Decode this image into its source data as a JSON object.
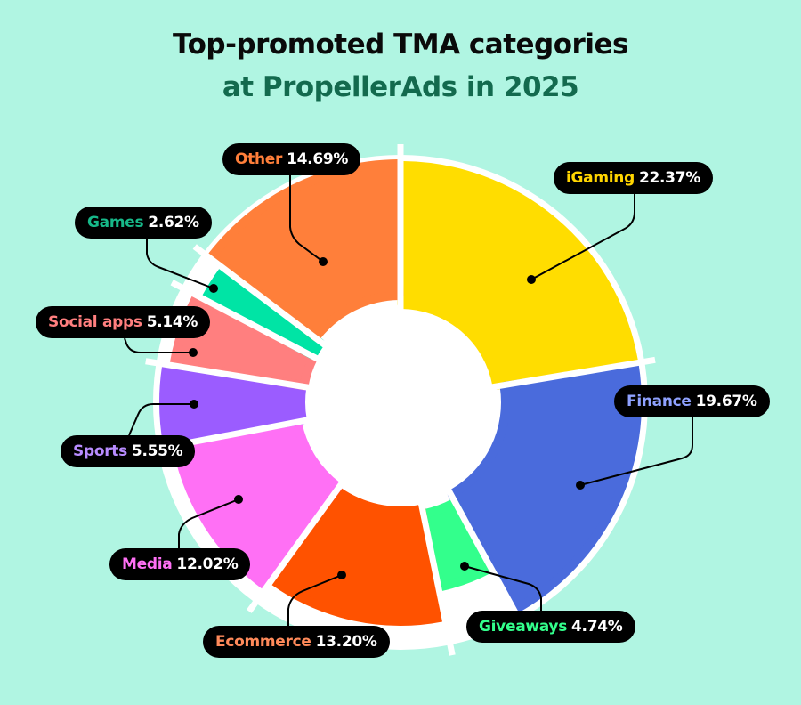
{
  "title": {
    "line1": "Top-promoted TMA categories",
    "line2": "at PropellerAds in 2025"
  },
  "chart_data": {
    "type": "pie",
    "variant": "radial donut (variable-radius slices)",
    "title": "Top-promoted TMA categories at PropellerAds in 2025",
    "unit": "%",
    "categories": [
      "iGaming",
      "Finance",
      "Giveaways",
      "Ecommerce",
      "Media",
      "Sports",
      "Social apps",
      "Games",
      "Other"
    ],
    "values": [
      22.37,
      19.67,
      4.74,
      13.2,
      12.02,
      5.55,
      5.14,
      2.62,
      14.69
    ],
    "colors": [
      "#ffdd00",
      "#4a6bdc",
      "#33ff8c",
      "#ff5200",
      "#ff70f5",
      "#9b5cff",
      "#ff7f7f",
      "#00e4a5",
      "#ff7f3a"
    ],
    "label_colors": [
      "#ffd500",
      "#8fa2ff",
      "#33ff8c",
      "#ff8a5a",
      "#ff70f5",
      "#b88cff",
      "#ff7f7f",
      "#17b889",
      "#ff7f3a"
    ],
    "legend": "callout labels"
  },
  "labels": [
    {
      "category": "iGaming",
      "value": "22.37%"
    },
    {
      "category": "Finance",
      "value": "19.67%"
    },
    {
      "category": "Giveaways",
      "value": "4.74%"
    },
    {
      "category": "Ecommerce",
      "value": "13.20%"
    },
    {
      "category": "Media",
      "value": "12.02%"
    },
    {
      "category": "Sports",
      "value": "5.55%"
    },
    {
      "category": "Social apps",
      "value": "5.14%"
    },
    {
      "category": "Games",
      "value": "2.62%"
    },
    {
      "category": "Other",
      "value": "14.69%"
    }
  ]
}
